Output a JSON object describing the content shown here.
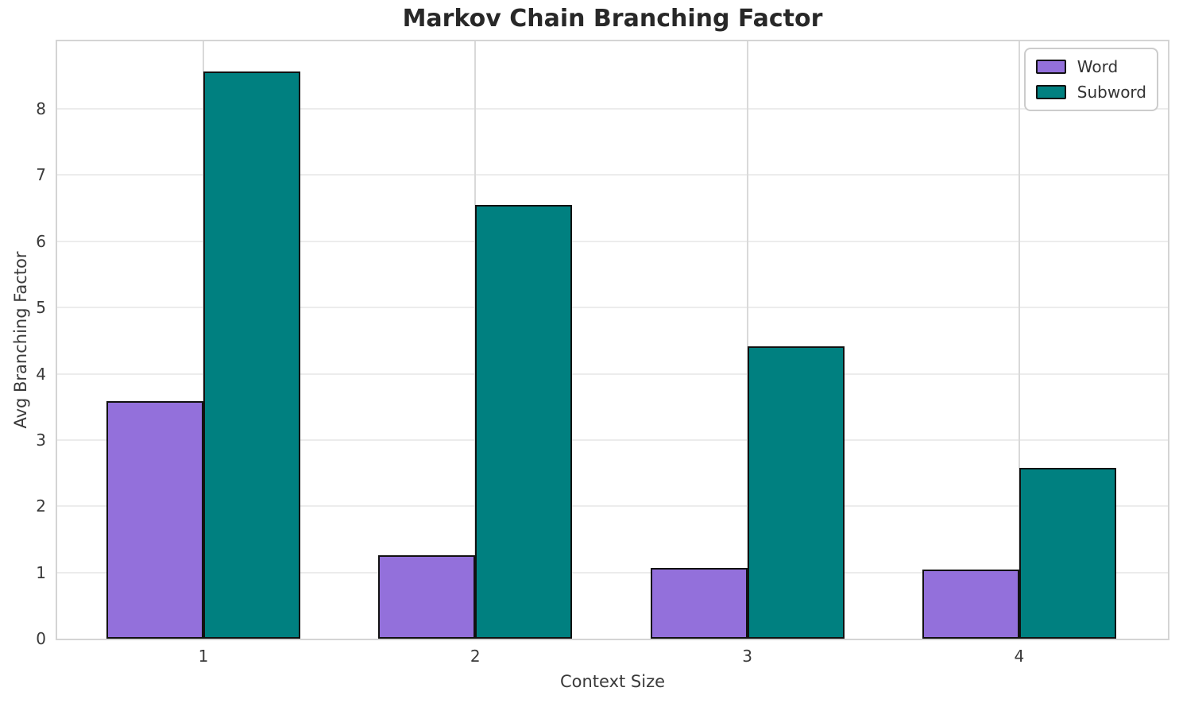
{
  "chart_data": {
    "type": "bar",
    "title": "Markov Chain Branching Factor",
    "xlabel": "Context Size",
    "ylabel": "Avg Branching Factor",
    "categories": [
      "1",
      "2",
      "3",
      "4"
    ],
    "series": [
      {
        "name": "Word",
        "color": "#9370DB",
        "values": [
          3.59,
          1.26,
          1.07,
          1.04
        ]
      },
      {
        "name": "Subword",
        "color": "#008080",
        "values": [
          8.56,
          6.55,
          4.41,
          2.58
        ]
      }
    ],
    "ylim": [
      0,
      9.02
    ],
    "yticks": [
      0,
      1,
      2,
      3,
      4,
      5,
      6,
      7,
      8
    ],
    "grid": true,
    "legend_position": "upper right",
    "bar_edge_color": "#111111",
    "background_color": "#ffffff"
  }
}
